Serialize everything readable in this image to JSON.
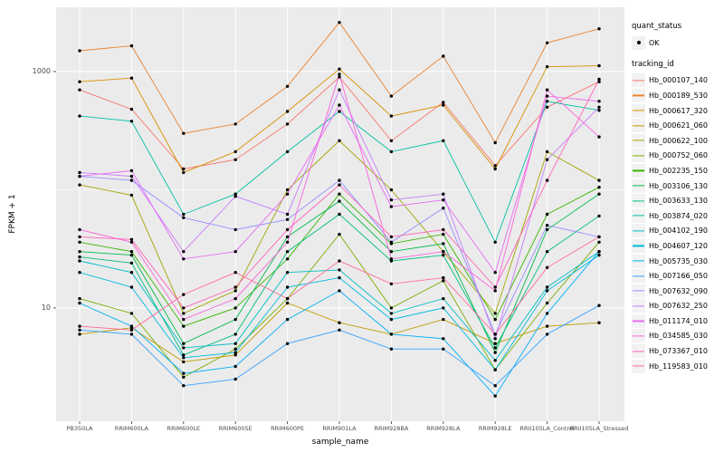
{
  "figure": {
    "background": "#FFFFFF",
    "panel_background": "#EBEBEB",
    "grid_color": "#FFFFFF",
    "point_color": "#000000"
  },
  "axes": {
    "y_label": "FPKM + 1",
    "x_label": "sample_name",
    "y_ticks": [
      {
        "label": "1000",
        "value": 1000
      },
      {
        "label": "10",
        "value": 10
      }
    ]
  },
  "legend": {
    "quant_status": {
      "title": "quant_status",
      "items": [
        {
          "label": "OK",
          "marker": "point",
          "color": "#000000"
        }
      ]
    },
    "tracking_id": {
      "title": "tracking_id"
    }
  },
  "chart_data": {
    "type": "line",
    "y_scale": "log10",
    "ylim": [
      1.1,
      3500
    ],
    "major_gridlines": [
      10,
      1000
    ],
    "minor_gridlines": [
      100
    ],
    "title": "",
    "xlabel": "sample_name",
    "ylabel": "FPKM + 1",
    "legend_position": "right",
    "x": [
      "PB350LA",
      "RRIM600LA",
      "RRIM600LE",
      "RRIM600SE",
      "RRIM600PE",
      "RRIM901LA",
      "RRIM928BA",
      "RRIM928LA",
      "RRIM928LE",
      "RRII105LA_Control",
      "RRII105LA_Stressed"
    ],
    "series": [
      {
        "name": "Hb_000107_140",
        "color": "#F8766D",
        "values": [
          700,
          480,
          150,
          180,
          360,
          900,
          260,
          550,
          160,
          500,
          820
        ]
      },
      {
        "name": "Hb_000189_530",
        "color": "#EA8331",
        "values": [
          1500,
          1650,
          300,
          360,
          750,
          2600,
          620,
          1350,
          250,
          1750,
          2300
        ]
      },
      {
        "name": "Hb_000617_320",
        "color": "#D89000",
        "values": [
          820,
          880,
          140,
          210,
          460,
          1050,
          420,
          520,
          150,
          1100,
          1120
        ]
      },
      {
        "name": "Hb_000621_060",
        "color": "#C09B00",
        "values": [
          6,
          6.8,
          3.5,
          4,
          11,
          7.5,
          6,
          8,
          5,
          7,
          7.5
        ]
      },
      {
        "name": "Hb_000622_100",
        "color": "#A3A500",
        "values": [
          110,
          90,
          9,
          14,
          100,
          260,
          100,
          30,
          9,
          210,
          120
        ]
      },
      {
        "name": "Hb_000752_060",
        "color": "#7CAE00",
        "values": [
          12,
          9,
          2.6,
          4.5,
          12,
          42,
          10,
          17,
          3,
          11,
          36
        ]
      },
      {
        "name": "Hb_002235_150",
        "color": "#39B600",
        "values": [
          36,
          30,
          7,
          10,
          26,
          92,
          35,
          42,
          8,
          62,
          105
        ]
      },
      {
        "name": "Hb_003106_130",
        "color": "#00BB4E",
        "values": [
          30,
          28,
          5,
          8,
          40,
          80,
          30,
          35,
          4.2,
          46,
          92
        ]
      },
      {
        "name": "Hb_003633_130",
        "color": "#00BF7D",
        "values": [
          27,
          24,
          4,
          6,
          30,
          62,
          25,
          28,
          4.6,
          30,
          60
        ]
      },
      {
        "name": "Hb_003874_020",
        "color": "#00C1A3",
        "values": [
          420,
          380,
          62,
          92,
          210,
          460,
          210,
          260,
          36,
          560,
          470
        ]
      },
      {
        "name": "Hb_004102_190",
        "color": "#00BFC4",
        "values": [
          25,
          20,
          4.6,
          5,
          20,
          21,
          9,
          12,
          3.6,
          15,
          30
        ]
      },
      {
        "name": "Hb_004607_120",
        "color": "#00BAE0",
        "values": [
          20,
          15,
          3.8,
          4.2,
          15,
          18,
          8,
          10,
          3,
          14,
          28
        ]
      },
      {
        "name": "Hb_005735_030",
        "color": "#00B0F6",
        "values": [
          11,
          7,
          2.8,
          3.2,
          8,
          14,
          6,
          5.5,
          1.8,
          9,
          30
        ]
      },
      {
        "name": "Hb_007166_050",
        "color": "#35A2FF",
        "values": [
          6.5,
          6,
          2.2,
          2.5,
          5,
          6.5,
          4.5,
          4.5,
          2.2,
          6,
          10.5
        ]
      },
      {
        "name": "Hb_007632_090",
        "color": "#9590FF",
        "values": [
          130,
          120,
          58,
          46,
          56,
          120,
          36,
          70,
          6,
          50,
          40
        ]
      },
      {
        "name": "Hb_007632_250",
        "color": "#C77CFF",
        "values": [
          140,
          130,
          30,
          88,
          62,
          700,
          82,
          92,
          5.5,
          180,
          500
        ]
      },
      {
        "name": "Hb_011174_010",
        "color": "#E76BF3",
        "values": [
          130,
          145,
          26,
          30,
          92,
          520,
          72,
          82,
          20,
          620,
          560
        ]
      },
      {
        "name": "Hb_034585_030",
        "color": "#FA62DB",
        "values": [
          46,
          36,
          8,
          12,
          36,
          950,
          26,
          30,
          14,
          700,
          280
        ]
      },
      {
        "name": "Hb_073367_010",
        "color": "#FF62BC",
        "values": [
          40,
          38,
          10,
          15,
          46,
          110,
          40,
          46,
          15,
          120,
          860
        ]
      },
      {
        "name": "Hb_119583_010",
        "color": "#FF6A98",
        "values": [
          7,
          6.5,
          13,
          20,
          12,
          25,
          16,
          18,
          6,
          22,
          40
        ]
      }
    ]
  }
}
